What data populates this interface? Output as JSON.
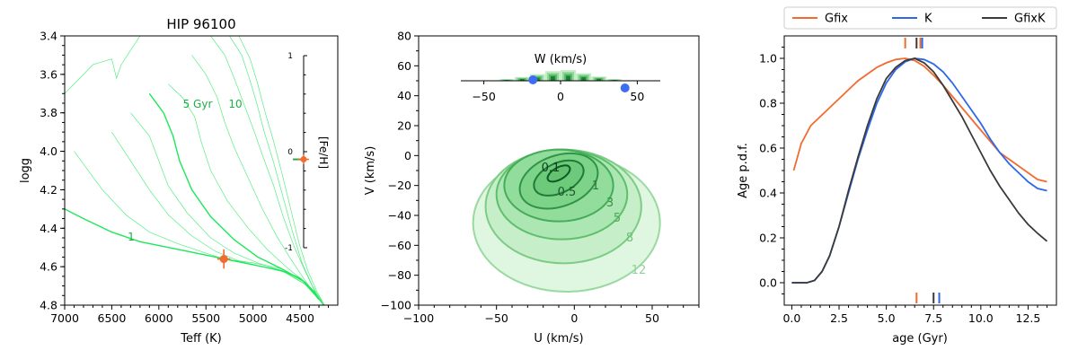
{
  "chart_data": [
    {
      "type": "line",
      "title": "HIP 96100",
      "xlabel": "Teff (K)",
      "ylabel": "logg",
      "xlim": [
        7000,
        4100
      ],
      "ylim": [
        4.8,
        3.4
      ],
      "x_ticks": [
        "7000",
        "6500",
        "6000",
        "5500",
        "5000",
        "4500"
      ],
      "y_ticks": [
        "3.4",
        "3.6",
        "3.8",
        "4.0",
        "4.2",
        "4.4",
        "4.6",
        "4.8"
      ],
      "isochrone_labels": [
        "5 Gyr",
        "10",
        "1"
      ],
      "isochrone_color": "#1ee85a",
      "star": {
        "teff": 5310,
        "teff_err": 70,
        "logg": 4.56,
        "logg_err": 0.05,
        "color": "#f26b2f"
      },
      "feh_inset": {
        "label": "[Fe/H]",
        "ticks": [
          "1",
          "0",
          "-1"
        ],
        "range": [
          -1,
          1
        ],
        "value": -0.08,
        "value_err": 0.05
      },
      "isochrones": [
        [
          [
            7000,
            4.3
          ],
          [
            6800,
            4.35
          ],
          [
            6500,
            4.42
          ],
          [
            6200,
            4.47
          ],
          [
            5900,
            4.5
          ],
          [
            5600,
            4.53
          ],
          [
            5300,
            4.56
          ],
          [
            5000,
            4.59
          ],
          [
            4700,
            4.62
          ],
          [
            4500,
            4.66
          ],
          [
            4350,
            4.73
          ],
          [
            4250,
            4.8
          ]
        ],
        [
          [
            6900,
            4.0
          ],
          [
            6600,
            4.2
          ],
          [
            6350,
            4.33
          ],
          [
            6100,
            4.42
          ],
          [
            5800,
            4.48
          ],
          [
            5500,
            4.53
          ],
          [
            5300,
            4.56
          ],
          [
            5000,
            4.58
          ],
          [
            4700,
            4.61
          ],
          [
            4500,
            4.66
          ],
          [
            4350,
            4.74
          ],
          [
            4250,
            4.8
          ]
        ],
        [
          [
            6500,
            3.9
          ],
          [
            6300,
            4.05
          ],
          [
            6100,
            4.2
          ],
          [
            5900,
            4.33
          ],
          [
            5650,
            4.44
          ],
          [
            5400,
            4.52
          ],
          [
            5150,
            4.57
          ],
          [
            4900,
            4.6
          ],
          [
            4650,
            4.63
          ],
          [
            4450,
            4.69
          ],
          [
            4300,
            4.77
          ]
        ],
        [
          [
            6300,
            3.8
          ],
          [
            6100,
            3.92
          ],
          [
            6000,
            4.05
          ],
          [
            5900,
            4.18
          ],
          [
            5700,
            4.32
          ],
          [
            5450,
            4.45
          ],
          [
            5200,
            4.53
          ],
          [
            4950,
            4.58
          ],
          [
            4700,
            4.62
          ],
          [
            4450,
            4.69
          ],
          [
            4300,
            4.77
          ]
        ],
        [
          [
            6100,
            3.7
          ],
          [
            5950,
            3.8
          ],
          [
            5850,
            3.92
          ],
          [
            5780,
            4.05
          ],
          [
            5650,
            4.2
          ],
          [
            5450,
            4.34
          ],
          [
            5200,
            4.46
          ],
          [
            4950,
            4.55
          ],
          [
            4700,
            4.61
          ],
          [
            4450,
            4.68
          ],
          [
            4300,
            4.77
          ]
        ],
        [
          [
            5900,
            3.65
          ],
          [
            5750,
            3.72
          ],
          [
            5620,
            3.82
          ],
          [
            5550,
            3.95
          ],
          [
            5450,
            4.1
          ],
          [
            5270,
            4.26
          ],
          [
            5050,
            4.4
          ],
          [
            4850,
            4.51
          ],
          [
            4650,
            4.6
          ],
          [
            4450,
            4.68
          ],
          [
            4300,
            4.77
          ]
        ],
        [
          [
            5650,
            3.5
          ],
          [
            5500,
            3.6
          ],
          [
            5380,
            3.72
          ],
          [
            5300,
            3.85
          ],
          [
            5200,
            3.98
          ],
          [
            5050,
            4.14
          ],
          [
            4900,
            4.3
          ],
          [
            4750,
            4.44
          ],
          [
            4600,
            4.56
          ],
          [
            4450,
            4.67
          ],
          [
            4300,
            4.77
          ]
        ],
        [
          [
            5450,
            3.4
          ],
          [
            5300,
            3.5
          ],
          [
            5200,
            3.62
          ],
          [
            5100,
            3.75
          ],
          [
            5000,
            3.88
          ],
          [
            4900,
            4.02
          ],
          [
            4780,
            4.18
          ],
          [
            4680,
            4.34
          ],
          [
            4560,
            4.5
          ],
          [
            4430,
            4.64
          ],
          [
            4300,
            4.77
          ]
        ],
        [
          [
            5250,
            3.4
          ],
          [
            5120,
            3.5
          ],
          [
            5040,
            3.62
          ],
          [
            4960,
            3.75
          ],
          [
            4880,
            3.9
          ],
          [
            4780,
            4.06
          ],
          [
            4680,
            4.24
          ],
          [
            4580,
            4.42
          ],
          [
            4480,
            4.58
          ],
          [
            4370,
            4.7
          ],
          [
            4270,
            4.78
          ]
        ],
        [
          [
            5150,
            3.4
          ],
          [
            5030,
            3.52
          ],
          [
            4950,
            3.65
          ],
          [
            4870,
            3.8
          ],
          [
            4780,
            3.95
          ],
          [
            4690,
            4.12
          ],
          [
            4600,
            4.3
          ],
          [
            4510,
            4.48
          ],
          [
            4420,
            4.62
          ],
          [
            4320,
            4.73
          ],
          [
            4240,
            4.8
          ]
        ],
        [
          [
            7000,
            3.7
          ],
          [
            6700,
            3.55
          ],
          [
            6500,
            3.52
          ],
          [
            6450,
            3.62
          ],
          [
            6400,
            3.55
          ],
          [
            6200,
            3.4
          ]
        ]
      ]
    },
    {
      "type": "contour",
      "xlabel": "U (km/s)",
      "ylabel": "V (km/s)",
      "xlim": [
        -100,
        80
      ],
      "ylim": [
        -100,
        80
      ],
      "x_ticks": [
        "−100",
        "−50",
        "0",
        "50"
      ],
      "y_ticks": [
        "80",
        "60",
        "40",
        "20",
        "0",
        "−20",
        "−40",
        "−60",
        "−80",
        "−100"
      ],
      "contour_labels": [
        "0.1",
        "0.5",
        "1",
        "3",
        "5",
        "8",
        "12"
      ],
      "contours": [
        {
          "level": "12",
          "cu": -5,
          "cv": -45,
          "ru": 60,
          "rv": 46,
          "angle": 0,
          "fill": "#dcf5de",
          "stroke": "#9ad9a0"
        },
        {
          "level": "8",
          "cu": -7,
          "cv": -34,
          "ru": 50,
          "rv": 38,
          "angle": 0,
          "fill": "#c2edc6",
          "stroke": "#7dcc85"
        },
        {
          "level": "5",
          "cu": -8,
          "cv": -26,
          "ru": 42,
          "rv": 30,
          "angle": 0,
          "fill": "#a9e5b0",
          "stroke": "#5fbf6c"
        },
        {
          "level": "3",
          "cu": -10,
          "cv": -20,
          "ru": 35,
          "rv": 24,
          "angle": 0,
          "fill": "#8fdc99",
          "stroke": "#45ac57"
        },
        {
          "level": "1",
          "cu": -10,
          "cv": -17,
          "ru": 26,
          "rv": 17,
          "angle": -20,
          "fill": "#7bd387",
          "stroke": "#2f9446"
        },
        {
          "level": "0.5",
          "cu": -10,
          "cv": -15,
          "ru": 17,
          "rv": 10,
          "angle": -25,
          "fill": "#6cc979",
          "stroke": "#1f7b36"
        },
        {
          "level": "0.1",
          "cu": -10,
          "cv": -12,
          "ru": 8,
          "rv": 4,
          "angle": -30,
          "fill": "#62c06f",
          "stroke": "#0f5b26"
        }
      ],
      "w_inset": {
        "label": "W (km/s)",
        "ticks": [
          "−50",
          "0",
          "50"
        ],
        "xlim": [
          -65,
          65
        ],
        "hist_centers": [
          -45,
          -35,
          -25,
          -15,
          -5,
          5,
          15,
          25,
          35,
          45
        ],
        "hist_heights": [
          0.05,
          0.15,
          0.35,
          0.62,
          0.9,
          1.0,
          0.7,
          0.4,
          0.15,
          0.05
        ],
        "points": [
          -18,
          42
        ],
        "point_color": "#3d6df2"
      }
    },
    {
      "type": "line",
      "xlabel": "age (Gyr)",
      "ylabel": "Age p.d.f.",
      "xlim": [
        -0.4,
        14.0
      ],
      "ylim": [
        -0.1,
        1.1
      ],
      "x_ticks": [
        "0.0",
        "2.5",
        "5.0",
        "7.5",
        "10.0",
        "12.5"
      ],
      "y_ticks": [
        "0.0",
        "0.2",
        "0.4",
        "0.6",
        "0.8",
        "1.0"
      ],
      "legend": "top-outside",
      "series": [
        {
          "name": "Gfix",
          "color": "#f26b2f",
          "points": [
            [
              0.1,
              0.5
            ],
            [
              0.5,
              0.62
            ],
            [
              1.0,
              0.7
            ],
            [
              1.5,
              0.74
            ],
            [
              2,
              0.78
            ],
            [
              2.5,
              0.82
            ],
            [
              3,
              0.86
            ],
            [
              3.5,
              0.9
            ],
            [
              4,
              0.93
            ],
            [
              4.5,
              0.96
            ],
            [
              5,
              0.98
            ],
            [
              5.5,
              0.995
            ],
            [
              6,
              1.0
            ],
            [
              6.5,
              0.99
            ],
            [
              7,
              0.965
            ],
            [
              7.5,
              0.925
            ],
            [
              8,
              0.88
            ],
            [
              8.5,
              0.83
            ],
            [
              9,
              0.78
            ],
            [
              9.5,
              0.73
            ],
            [
              10,
              0.68
            ],
            [
              10.5,
              0.63
            ],
            [
              11,
              0.58
            ],
            [
              11.5,
              0.55
            ],
            [
              12,
              0.52
            ],
            [
              12.5,
              0.49
            ],
            [
              13,
              0.46
            ],
            [
              13.5,
              0.45
            ]
          ],
          "top_markers": [
            6.0,
            6.8
          ],
          "bottom_markers": [
            6.6
          ]
        },
        {
          "name": "K",
          "color": "#2e68e8",
          "points": [
            [
              0.0,
              0.0
            ],
            [
              0.8,
              0.0
            ],
            [
              1.2,
              0.01
            ],
            [
              1.6,
              0.05
            ],
            [
              2,
              0.12
            ],
            [
              2.5,
              0.25
            ],
            [
              3,
              0.4
            ],
            [
              3.5,
              0.55
            ],
            [
              4,
              0.68
            ],
            [
              4.5,
              0.8
            ],
            [
              5,
              0.89
            ],
            [
              5.5,
              0.95
            ],
            [
              6,
              0.985
            ],
            [
              6.5,
              1.0
            ],
            [
              7,
              0.995
            ],
            [
              7.5,
              0.975
            ],
            [
              8,
              0.94
            ],
            [
              8.5,
              0.89
            ],
            [
              9,
              0.83
            ],
            [
              9.5,
              0.77
            ],
            [
              10,
              0.71
            ],
            [
              10.5,
              0.64
            ],
            [
              11,
              0.58
            ],
            [
              11.5,
              0.53
            ],
            [
              12,
              0.49
            ],
            [
              12.5,
              0.45
            ],
            [
              13,
              0.42
            ],
            [
              13.5,
              0.41
            ]
          ],
          "top_markers": [
            6.9
          ],
          "bottom_markers": [
            7.8
          ]
        },
        {
          "name": "GfixK",
          "color": "#3a3a3a",
          "points": [
            [
              0.0,
              0.0
            ],
            [
              0.8,
              0.0
            ],
            [
              1.2,
              0.01
            ],
            [
              1.6,
              0.05
            ],
            [
              2,
              0.12
            ],
            [
              2.5,
              0.25
            ],
            [
              3,
              0.41
            ],
            [
              3.5,
              0.56
            ],
            [
              4,
              0.7
            ],
            [
              4.5,
              0.82
            ],
            [
              5,
              0.91
            ],
            [
              5.5,
              0.96
            ],
            [
              6,
              0.99
            ],
            [
              6.5,
              1.0
            ],
            [
              7,
              0.98
            ],
            [
              7.5,
              0.94
            ],
            [
              8,
              0.88
            ],
            [
              8.5,
              0.81
            ],
            [
              9,
              0.74
            ],
            [
              9.5,
              0.66
            ],
            [
              10,
              0.58
            ],
            [
              10.5,
              0.5
            ],
            [
              11,
              0.43
            ],
            [
              11.5,
              0.37
            ],
            [
              12,
              0.31
            ],
            [
              12.5,
              0.26
            ],
            [
              13,
              0.22
            ],
            [
              13.5,
              0.185
            ]
          ],
          "top_markers": [
            6.6
          ],
          "bottom_markers": [
            7.5
          ]
        }
      ]
    }
  ]
}
